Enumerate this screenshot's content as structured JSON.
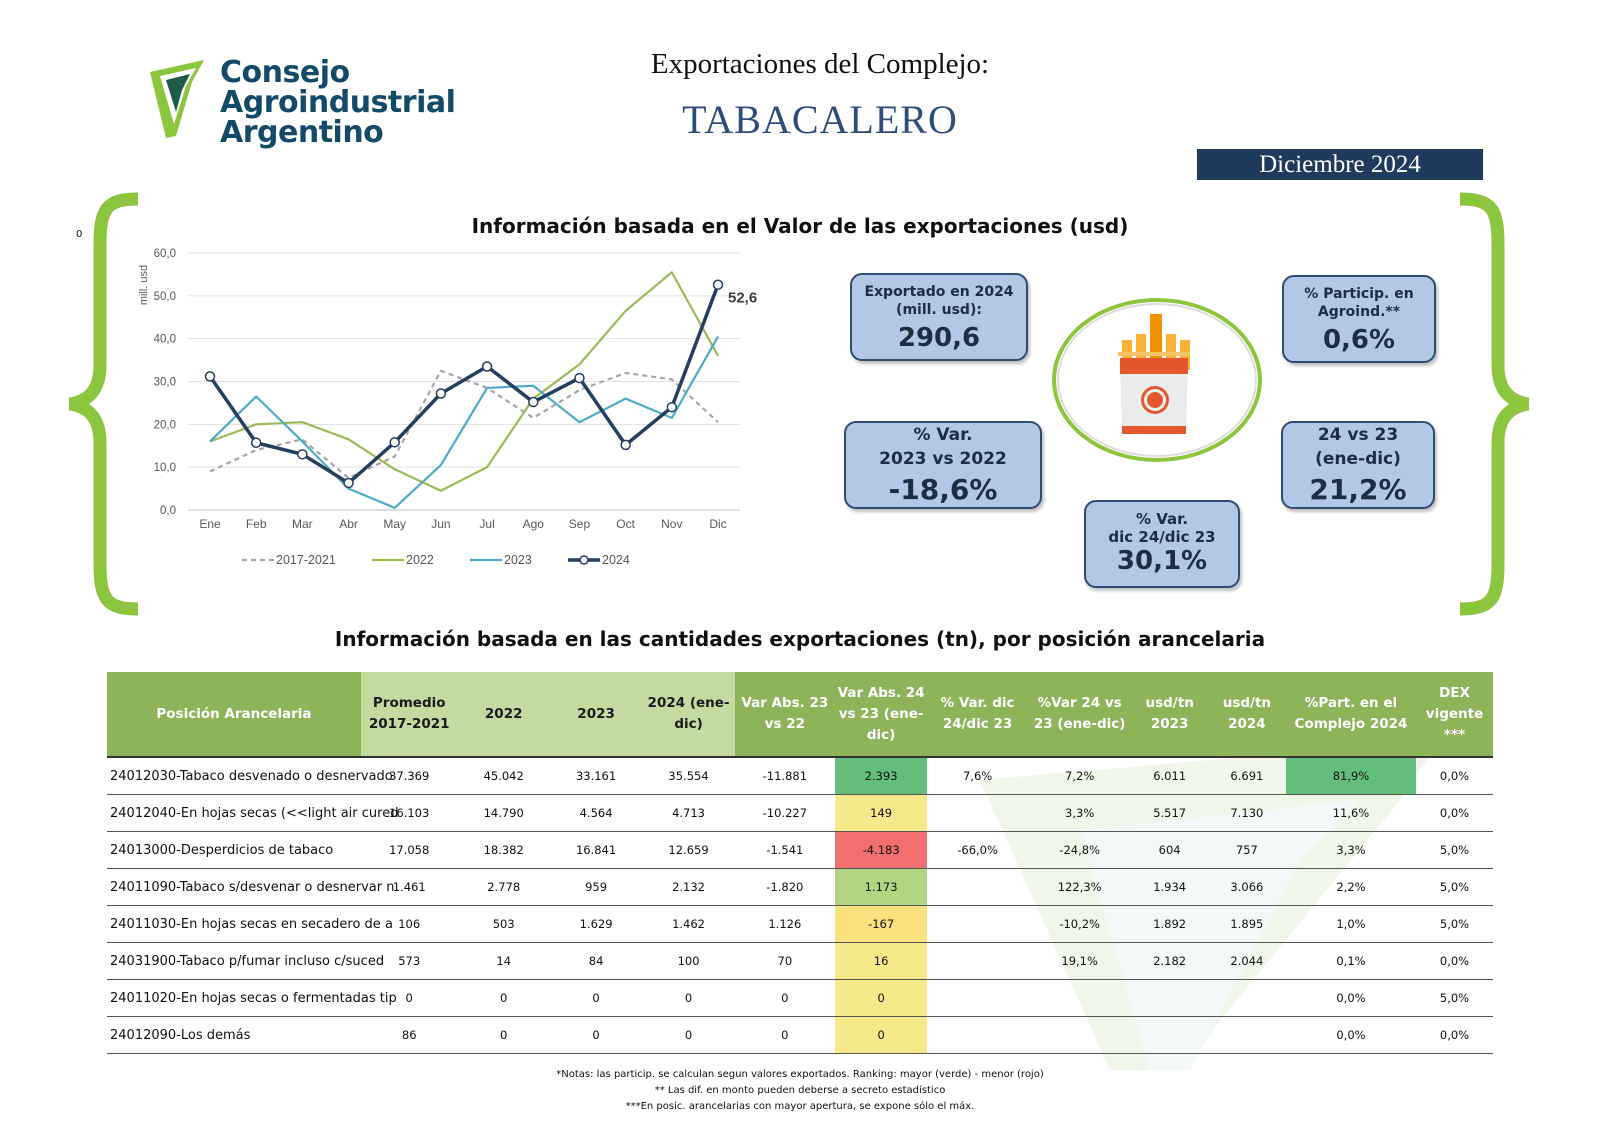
{
  "header": {
    "logo_lines": [
      "Consejo",
      "Agroindustrial",
      "Argentino"
    ],
    "subtitle": "Exportaciones del Complejo:",
    "title": "TABACALERO",
    "period": "Diciembre 2024",
    "stray_mark": "0"
  },
  "section1_title": "Información basada en el Valor de las exportaciones (usd)",
  "section2_title": "Información basada en las cantidades exportaciones (tn), por posición arancelaria",
  "kpis": {
    "exportado": {
      "label1": "Exportado en 2024",
      "label2": "(mill. usd):",
      "value": "290,6"
    },
    "particip": {
      "label1": "% Particip. en",
      "label2": "Agroind.**",
      "value": "0,6%"
    },
    "var2322": {
      "label1": "% Var.",
      "label2": "2023 vs 2022",
      "value": "-18,6%"
    },
    "v2423": {
      "label1": "24 vs 23",
      "label2": "(ene-dic)",
      "value": "21,2%"
    },
    "vardic": {
      "label1": "% Var.",
      "label2": "dic 24/dic 23",
      "value": "30,1%"
    }
  },
  "colors": {
    "green_bracket": "#8cc63f",
    "navy": "#1f3a5c",
    "kpi_fill": "#b3c7e6",
    "header_green": "#8db459"
  },
  "chart_data": {
    "type": "line",
    "title": "",
    "xlabel": "",
    "ylabel": "mill. usd",
    "categories": [
      "Ene",
      "Feb",
      "Mar",
      "Abr",
      "May",
      "Jun",
      "Jul",
      "Ago",
      "Sep",
      "Oct",
      "Nov",
      "Dic"
    ],
    "ylim": [
      0,
      60
    ],
    "yticks": [
      "0,0",
      "10,0",
      "20,0",
      "30,0",
      "40,0",
      "50,0",
      "60,0"
    ],
    "series": [
      {
        "name": "2017-2021",
        "color": "#a6a6a6",
        "dash": true,
        "values": [
          9,
          14,
          16.5,
          7.5,
          12.5,
          32.5,
          28.5,
          21.5,
          28,
          32,
          30.5,
          20.5
        ]
      },
      {
        "name": "2022",
        "color": "#9bbb59",
        "dash": false,
        "values": [
          16,
          20,
          20.5,
          16.5,
          9.5,
          4.5,
          10,
          26,
          34,
          46.5,
          55.5,
          36
        ]
      },
      {
        "name": "2023",
        "color": "#4bacc6",
        "dash": false,
        "values": [
          16,
          26.5,
          16,
          5,
          0.5,
          10.5,
          28.5,
          29,
          20.5,
          26,
          21.5,
          40.5
        ]
      },
      {
        "name": "2024",
        "color": "#243f60",
        "dash": false,
        "markers": true,
        "values": [
          31.2,
          15.7,
          13,
          6.3,
          15.8,
          27.2,
          33.5,
          25.2,
          30.8,
          15.2,
          24,
          52.6
        ]
      }
    ],
    "last_label": "52,6",
    "legend": "bottom"
  },
  "table": {
    "headers": [
      "Posición Arancelaria",
      "Promedio 2017-2021",
      "2022",
      "2023",
      "2024 (ene-dic)",
      "Var Abs. 23 vs 22",
      "Var Abs. 24 vs 23 (ene-dic)",
      "% Var. dic 24/dic 23",
      "%Var 24 vs 23 (ene-dic)",
      "usd/tn 2023",
      "usd/tn 2024",
      "%Part. en el Complejo 2024",
      "DEX vigente ***"
    ],
    "rows": [
      {
        "name": "24012030-Tabaco desvenado o desnervado",
        "prom": "37.369",
        "y22": "45.042",
        "y23": "33.161",
        "y24": "35.554",
        "va2322": "-11.881",
        "va2423": "2.393",
        "vdic": "7,6%",
        "v2423": "7,2%",
        "u23": "6.011",
        "u24": "6.691",
        "part": "81,9%",
        "dex": "0,0%",
        "va_color": "#63be7b",
        "part_color": "#63be7b"
      },
      {
        "name": "24012040-En hojas secas (<<light air cured",
        "prom": "16.103",
        "y22": "14.790",
        "y23": "4.564",
        "y24": "4.713",
        "va2322": "-10.227",
        "va2423": "149",
        "vdic": "",
        "v2423": "3,3%",
        "u23": "5.517",
        "u24": "7.130",
        "part": "11,6%",
        "dex": "0,0%",
        "va_color": "#f5e98a",
        "part_color": ""
      },
      {
        "name": "24013000-Desperdicios de tabaco",
        "prom": "17.058",
        "y22": "18.382",
        "y23": "16.841",
        "y24": "12.659",
        "va2322": "-1.541",
        "va2423": "-4.183",
        "vdic": "-66,0%",
        "v2423": "-24,8%",
        "u23": "604",
        "u24": "757",
        "part": "3,3%",
        "dex": "5,0%",
        "va_color": "#f36e6e",
        "part_color": ""
      },
      {
        "name": "24011090-Tabaco s/desvenar o desnervar n",
        "prom": "1.461",
        "y22": "2.778",
        "y23": "959",
        "y24": "2.132",
        "va2322": "-1.820",
        "va2423": "1.173",
        "vdic": "",
        "v2423": "122,3%",
        "u23": "1.934",
        "u24": "3.066",
        "part": "2,2%",
        "dex": "5,0%",
        "va_color": "#b1d580",
        "part_color": ""
      },
      {
        "name": "24011030-En hojas secas en secadero de a",
        "prom": "106",
        "y22": "503",
        "y23": "1.629",
        "y24": "1.462",
        "va2322": "1.126",
        "va2423": "-167",
        "vdic": "",
        "v2423": "-10,2%",
        "u23": "1.892",
        "u24": "1.895",
        "part": "1,0%",
        "dex": "5,0%",
        "va_color": "#fbe07e",
        "part_color": ""
      },
      {
        "name": "24031900-Tabaco p/fumar incluso c/suced",
        "prom": "573",
        "y22": "14",
        "y23": "84",
        "y24": "100",
        "va2322": "70",
        "va2423": "16",
        "vdic": "",
        "v2423": "19,1%",
        "u23": "2.182",
        "u24": "2.044",
        "part": "0,1%",
        "dex": "0,0%",
        "va_color": "#f5e98a",
        "part_color": ""
      },
      {
        "name": "24011020-En hojas secas o fermentadas tip",
        "prom": "0",
        "y22": "0",
        "y23": "0",
        "y24": "0",
        "va2322": "0",
        "va2423": "0",
        "vdic": "",
        "v2423": "",
        "u23": "",
        "u24": "",
        "part": "0,0%",
        "dex": "5,0%",
        "va_color": "#f5e98a",
        "part_color": ""
      },
      {
        "name": "24012090-Los demás",
        "prom": "86",
        "y22": "0",
        "y23": "0",
        "y24": "0",
        "va2322": "0",
        "va2423": "0",
        "vdic": "",
        "v2423": "",
        "u23": "",
        "u24": "",
        "part": "0,0%",
        "dex": "0,0%",
        "va_color": "#f5e98a",
        "part_color": ""
      }
    ]
  },
  "notes": [
    "*Notas: las particip. se calculan segun valores exportados. Ranking: mayor (verde) - menor (rojo)",
    "** Las dif. en monto pueden deberse a secreto estadístico",
    "***En posic. arancelarias con mayor apertura, se expone sólo el máx."
  ]
}
